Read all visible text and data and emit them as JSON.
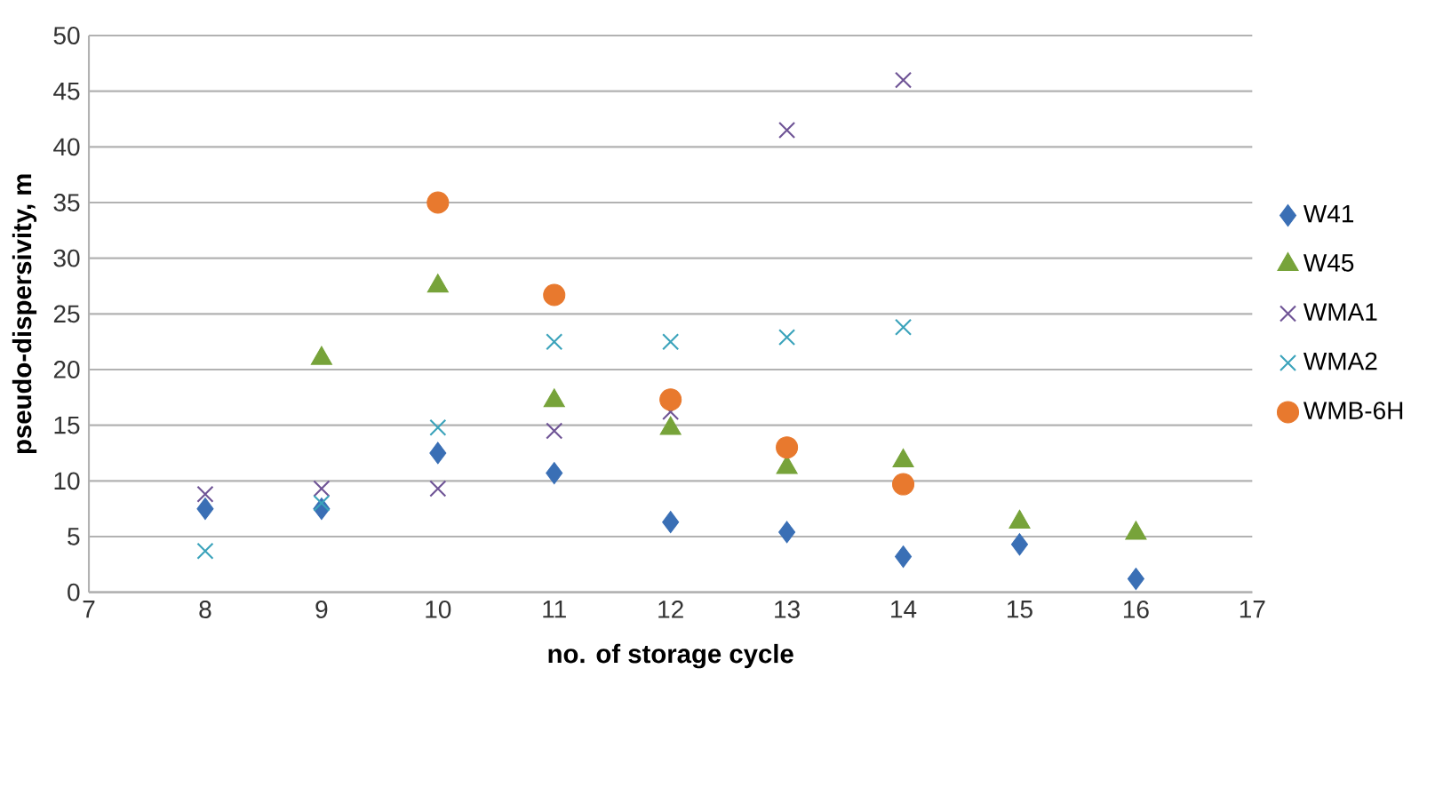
{
  "chart_data": {
    "type": "scatter",
    "xlabel": "no. of storage cycle",
    "ylabel": "pseudo-dispersivity, m",
    "xlim": [
      7,
      17
    ],
    "xticks": [
      7,
      8,
      9,
      10,
      11,
      12,
      13,
      14,
      15,
      16,
      17
    ],
    "ylim": [
      0,
      50
    ],
    "yticks": [
      0,
      5,
      10,
      15,
      20,
      25,
      30,
      35,
      40,
      45,
      50
    ],
    "grid": "y",
    "legend": "right",
    "series": [
      {
        "name": "W41",
        "color": "#3a6fb5",
        "marker": "diamond",
        "x": [
          8,
          9,
          10,
          11,
          12,
          13,
          14,
          15,
          16
        ],
        "values": [
          7.5,
          7.5,
          12.5,
          10.7,
          6.3,
          5.4,
          3.2,
          4.3,
          1.2
        ]
      },
      {
        "name": "W45",
        "color": "#77a33a",
        "marker": "triangle",
        "x": [
          9,
          10,
          11,
          12,
          13,
          14,
          15,
          16
        ],
        "values": [
          21,
          27.5,
          17.2,
          14.7,
          11.2,
          11.8,
          6.3,
          5.3
        ]
      },
      {
        "name": "WMA1",
        "color": "#6f5496",
        "marker": "cross",
        "x": [
          8,
          9,
          10,
          11,
          12,
          13,
          14
        ],
        "values": [
          8.8,
          9.3,
          9.3,
          14.5,
          16.2,
          41.5,
          46
        ]
      },
      {
        "name": "WMA2",
        "color": "#3ba3bb",
        "marker": "cross",
        "x": [
          8,
          9,
          10,
          11,
          12,
          13,
          14
        ],
        "values": [
          3.7,
          8,
          14.8,
          22.5,
          22.5,
          22.9,
          23.8
        ]
      },
      {
        "name": "WMB-6H",
        "color": "#e8792e",
        "marker": "circle",
        "x": [
          10,
          11,
          12,
          13,
          14
        ],
        "values": [
          35,
          26.7,
          17.3,
          13,
          9.7
        ]
      }
    ]
  }
}
